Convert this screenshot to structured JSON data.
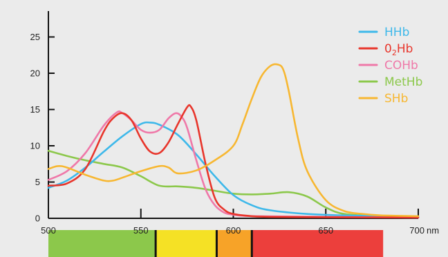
{
  "chart_data": {
    "type": "line",
    "title": "",
    "xlabel": "",
    "ylabel": "",
    "x_unit": "nm",
    "xlim": [
      500,
      700
    ],
    "ylim": [
      0,
      28
    ],
    "x_ticks": [
      500,
      550,
      600,
      650,
      700
    ],
    "y_ticks": [
      0,
      5,
      10,
      15,
      20,
      25
    ],
    "legend_position": "top-right",
    "series": [
      {
        "name": "HHb",
        "name_main": "HHb",
        "name_sub": "",
        "name_tail": "",
        "color": "#3db8ea",
        "x": [
          500,
          510,
          520,
          530,
          540,
          550,
          555,
          560,
          570,
          580,
          590,
          600,
          610,
          620,
          640,
          660,
          680,
          700
        ],
        "y": [
          4.2,
          5.2,
          7.0,
          9.2,
          11.3,
          13.0,
          13.2,
          12.9,
          11.5,
          8.8,
          5.8,
          3.2,
          1.8,
          1.1,
          0.6,
          0.4,
          0.3,
          0.2
        ]
      },
      {
        "name": "O2Hb",
        "name_main": "0",
        "name_sub": "2",
        "name_tail": "Hb",
        "color": "#e8352b",
        "x": [
          500,
          510,
          520,
          530,
          535,
          540,
          545,
          550,
          555,
          560,
          565,
          570,
          575,
          577,
          580,
          585,
          590,
          595,
          600,
          610,
          620,
          650,
          700
        ],
        "y": [
          4.5,
          4.8,
          6.8,
          12.0,
          13.8,
          14.5,
          13.5,
          11.0,
          9.2,
          9.0,
          10.5,
          13.0,
          15.3,
          15.4,
          13.5,
          7.5,
          2.8,
          1.2,
          0.6,
          0.3,
          0.2,
          0.15,
          0.1
        ]
      },
      {
        "name": "COHb",
        "name_main": "COHb",
        "name_sub": "",
        "name_tail": "",
        "color": "#ef78a8",
        "x": [
          500,
          510,
          520,
          530,
          537,
          540,
          545,
          550,
          555,
          560,
          565,
          569,
          572,
          575,
          580,
          585,
          590,
          595,
          600,
          610,
          650,
          700
        ],
        "y": [
          5.3,
          6.5,
          9.0,
          12.8,
          14.6,
          14.5,
          13.5,
          12.2,
          11.8,
          12.2,
          13.8,
          14.5,
          14.0,
          12.5,
          8.0,
          4.0,
          1.8,
          0.8,
          0.5,
          0.3,
          0.2,
          0.1
        ]
      },
      {
        "name": "MetHb",
        "name_main": "MetHb",
        "name_sub": "",
        "name_tail": "",
        "color": "#8cc84b",
        "x": [
          500,
          510,
          520,
          530,
          540,
          550,
          560,
          570,
          580,
          590,
          600,
          610,
          620,
          630,
          640,
          650,
          660,
          680,
          700
        ],
        "y": [
          9.3,
          8.6,
          8.0,
          7.5,
          7.0,
          5.8,
          4.5,
          4.4,
          4.2,
          3.8,
          3.4,
          3.3,
          3.4,
          3.6,
          3.0,
          1.5,
          0.6,
          0.3,
          0.2
        ]
      },
      {
        "name": "SHb",
        "name_main": "SHb",
        "name_sub": "",
        "name_tail": "",
        "color": "#f7b731",
        "x": [
          500,
          505,
          510,
          520,
          530,
          535,
          540,
          550,
          560,
          565,
          570,
          580,
          590,
          600,
          605,
          610,
          615,
          620,
          624,
          627,
          630,
          635,
          640,
          650,
          660,
          670,
          680,
          700
        ],
        "y": [
          6.8,
          7.2,
          7.0,
          6.0,
          5.2,
          5.2,
          5.6,
          6.5,
          7.2,
          7.0,
          6.2,
          6.6,
          8.0,
          10.0,
          13.0,
          16.5,
          19.5,
          21.0,
          21.2,
          20.5,
          17.5,
          11.0,
          6.5,
          2.5,
          1.0,
          0.6,
          0.4,
          0.3
        ]
      }
    ],
    "color_bands": [
      {
        "from": 500,
        "to": 558,
        "color": "#8cc84b"
      },
      {
        "from": 558,
        "to": 591,
        "color": "#f5e125"
      },
      {
        "from": 591,
        "to": 610,
        "color": "#f7a328"
      },
      {
        "from": 610,
        "to": 681,
        "color": "#ec3f3c"
      }
    ],
    "band_dividers": [
      558,
      591,
      610
    ]
  }
}
